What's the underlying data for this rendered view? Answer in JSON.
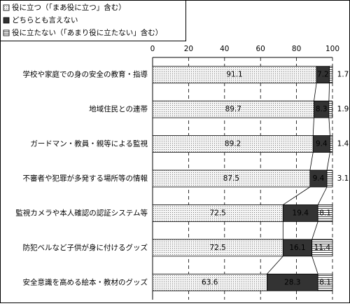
{
  "chart_data": {
    "type": "stacked-bar-horizontal",
    "categories": [
      "学校や家庭での身の安全の教育・指導",
      "地域住民との連帯",
      "ガードマン・教員・親等による監視",
      "不審者や犯罪が多発する場所等の情報",
      "監視カメラや本人確認の認証システム等",
      "防犯ベルなど子供が身に付けるグッズ",
      "安全意識を高める絵本・教材のグッズ"
    ],
    "series": [
      {
        "name": "役に立つ（「まあ役に立つ」含む）",
        "color": "#e6e6e6",
        "pattern": "dots",
        "values": [
          91.1,
          89.7,
          89.2,
          87.5,
          72.5,
          72.5,
          63.6
        ]
      },
      {
        "name": "どちらとも言えない",
        "color": "#333333",
        "pattern": "solid",
        "values": [
          7.2,
          8.3,
          9.4,
          9.4,
          19.4,
          16.1,
          28.3
        ]
      },
      {
        "name": "役に立たない（「あまり役に立たない」含む）",
        "color": "#ffffff",
        "pattern": "hlines",
        "values": [
          1.7,
          1.9,
          1.4,
          3.1,
          8.1,
          11.4,
          8.1
        ]
      }
    ],
    "xlim": [
      0,
      100
    ],
    "xticks": [
      0,
      20,
      40,
      60,
      80,
      100
    ],
    "grid": true,
    "legend": "top-left"
  }
}
